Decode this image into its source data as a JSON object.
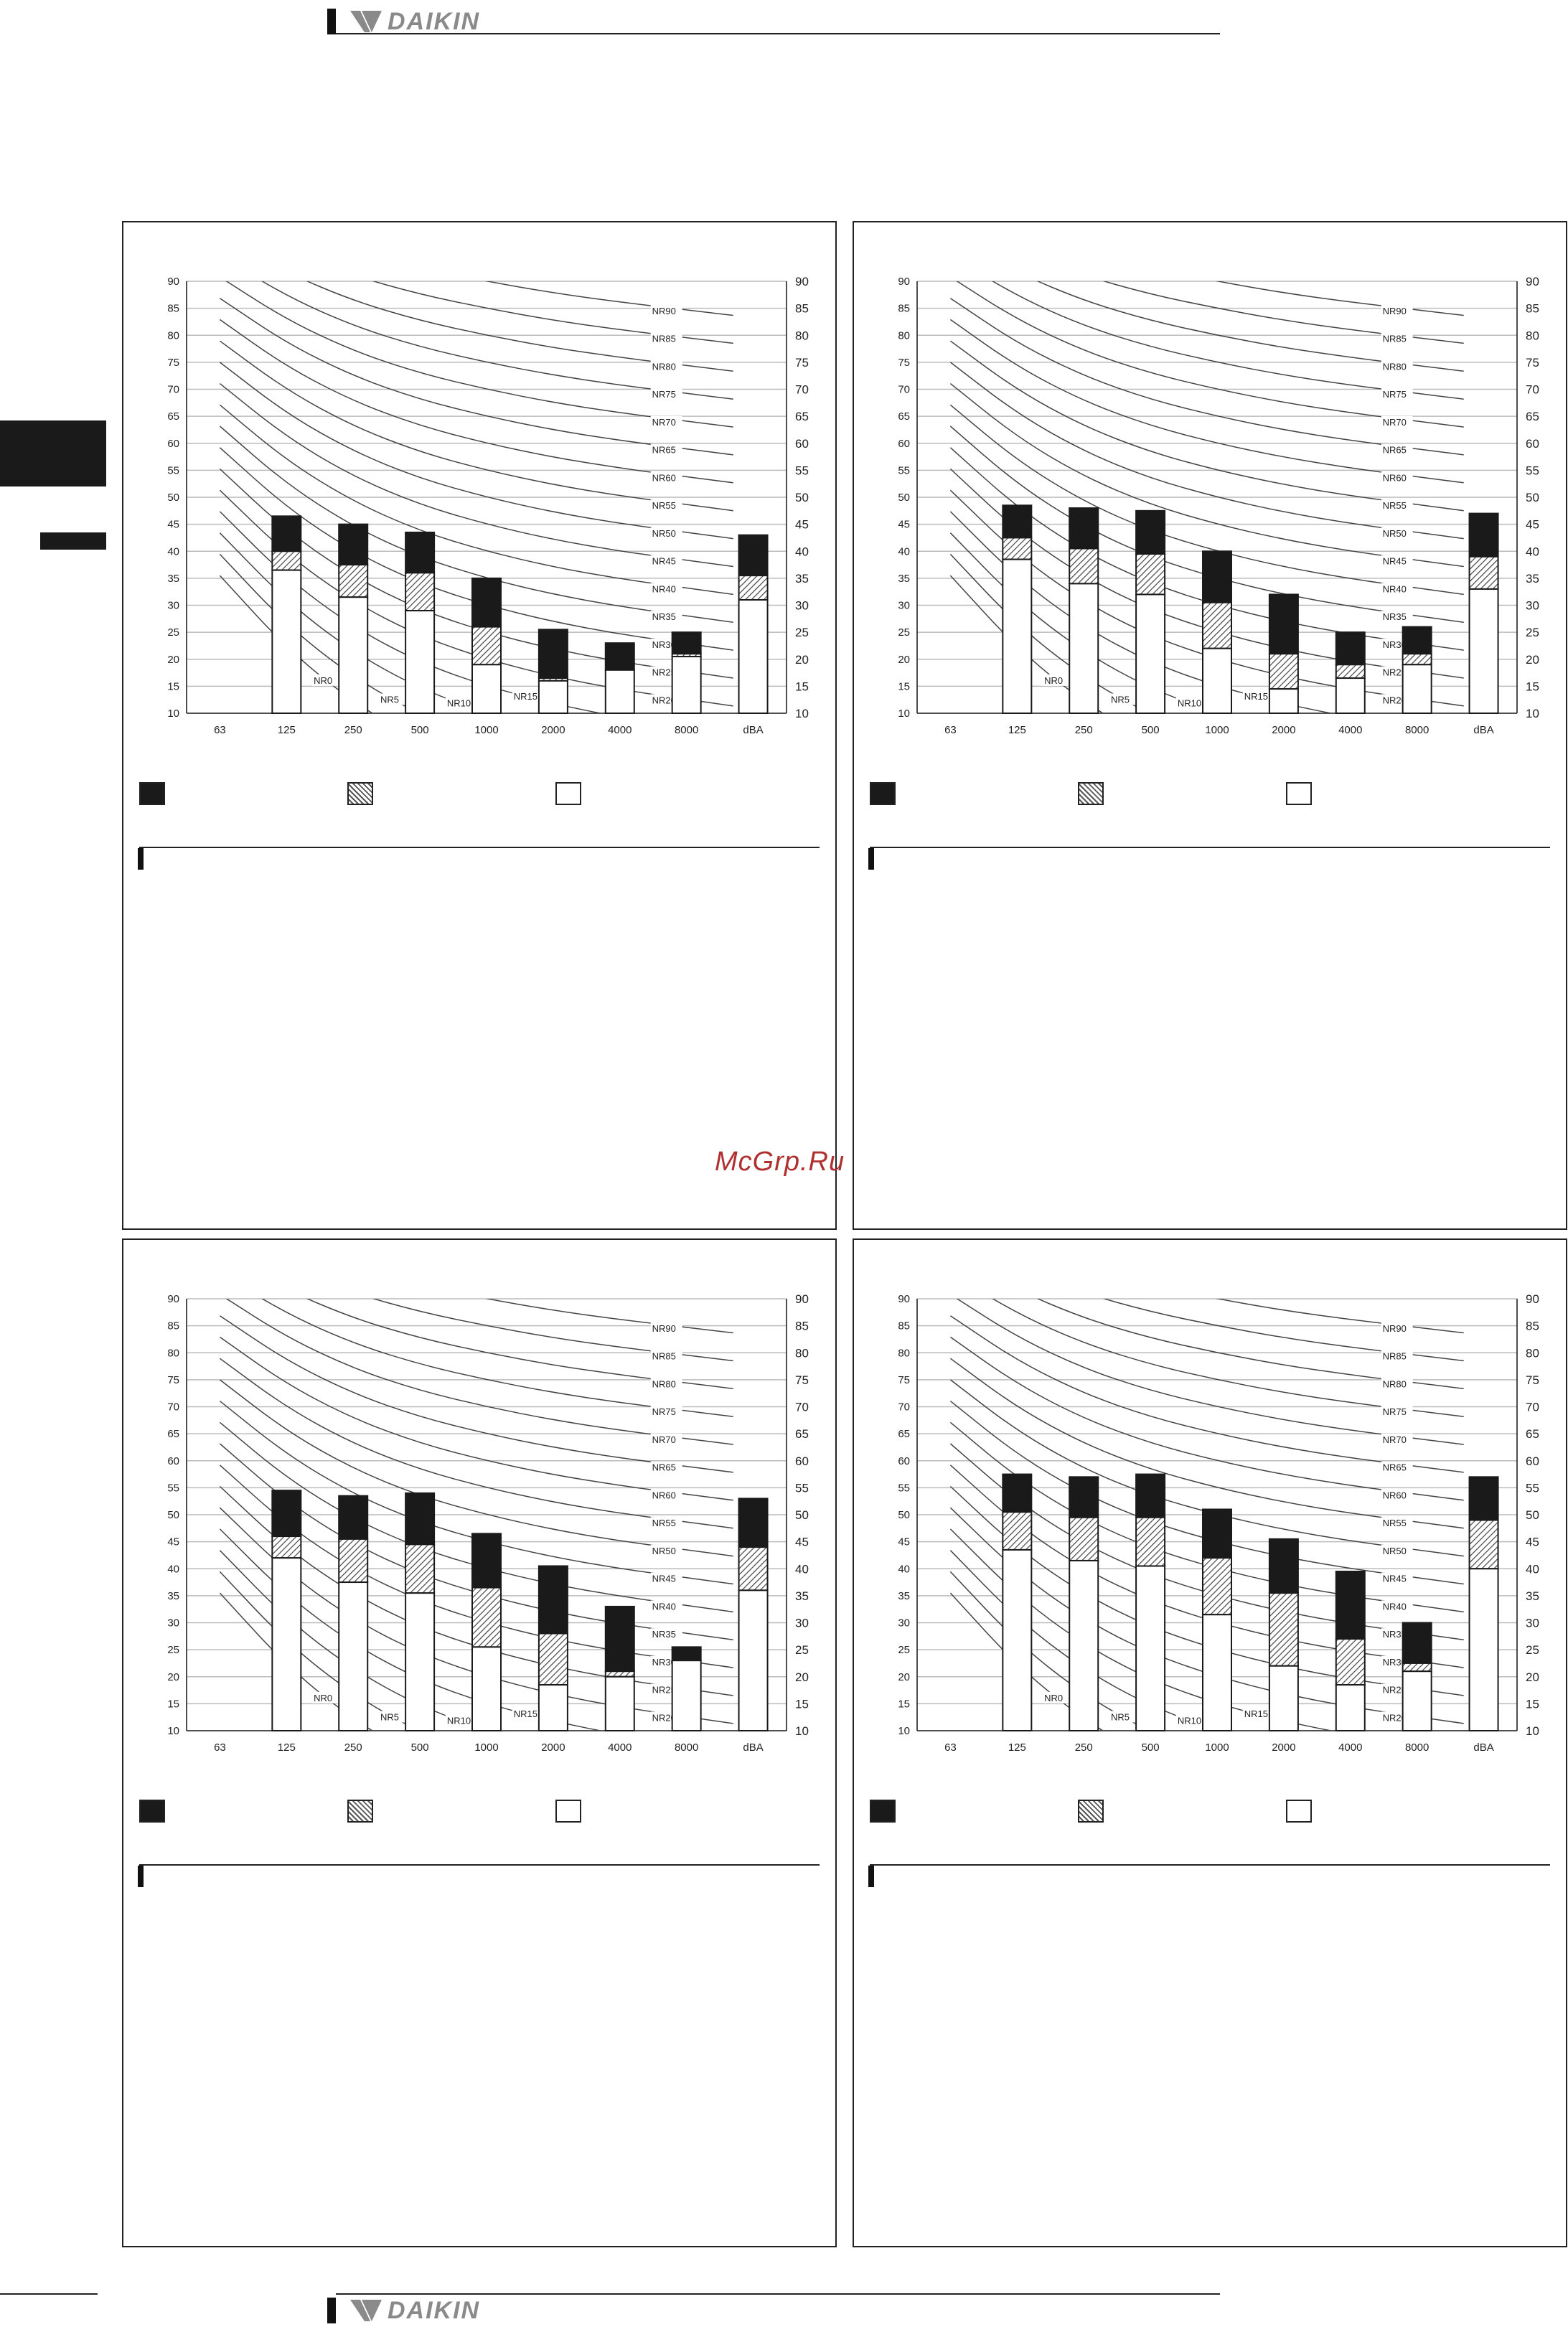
{
  "header": {
    "brand": "DAIKIN"
  },
  "footer": {
    "brand": "DAIKIN"
  },
  "watermark": "McGrp.Ru",
  "colors": {
    "octave_band": "#1a1a1a",
    "hatched": "#777777",
    "open": "#ffffff"
  },
  "legend_icons": [
    "black-square",
    "hatched-square",
    "white-square"
  ],
  "chart_data": [
    {
      "type": "bar",
      "categories": [
        "63",
        "125",
        "250",
        "500",
        "1000",
        "2000",
        "4000",
        "8000",
        "dBA"
      ],
      "ylim": [
        10,
        90
      ],
      "yticks": [
        10,
        15,
        20,
        25,
        30,
        35,
        40,
        45,
        50,
        55,
        60,
        65,
        70,
        75,
        80,
        85,
        90
      ],
      "nr_curves": [
        "NR0",
        "NR5",
        "NR10",
        "NR15",
        "NR20",
        "NR25",
        "NR30",
        "NR35",
        "NR40",
        "NR45",
        "NR50",
        "NR55",
        "NR60",
        "NR65",
        "NR70",
        "NR75",
        "NR80",
        "NR85",
        "NR90"
      ],
      "series": [
        {
          "values": [
            null,
            46.5,
            45,
            43.5,
            35,
            25.5,
            23,
            25,
            43
          ]
        },
        {
          "values": [
            null,
            40,
            37.5,
            36,
            26,
            16.5,
            null,
            21,
            35.5
          ]
        },
        {
          "values": [
            null,
            36.5,
            31.5,
            29,
            19,
            16,
            18,
            20.5,
            31
          ]
        }
      ]
    },
    {
      "type": "bar",
      "categories": [
        "63",
        "125",
        "250",
        "500",
        "1000",
        "2000",
        "4000",
        "8000",
        "dBA"
      ],
      "ylim": [
        10,
        90
      ],
      "yticks": [
        10,
        15,
        20,
        25,
        30,
        35,
        40,
        45,
        50,
        55,
        60,
        65,
        70,
        75,
        80,
        85,
        90
      ],
      "nr_curves": [
        "NR0",
        "NR5",
        "NR10",
        "NR15",
        "NR20",
        "NR25",
        "NR30",
        "NR35",
        "NR40",
        "NR45",
        "NR50",
        "NR55",
        "NR60",
        "NR65",
        "NR70",
        "NR75",
        "NR80",
        "NR85",
        "NR90"
      ],
      "series": [
        {
          "values": [
            null,
            48.5,
            48,
            47.5,
            40,
            32,
            25,
            26,
            47
          ]
        },
        {
          "values": [
            null,
            42.5,
            40.5,
            39.5,
            30.5,
            21,
            19,
            21,
            39
          ]
        },
        {
          "values": [
            null,
            38.5,
            34,
            32,
            22,
            14.5,
            16.5,
            19,
            33
          ]
        }
      ]
    },
    {
      "type": "bar",
      "categories": [
        "63",
        "125",
        "250",
        "500",
        "1000",
        "2000",
        "4000",
        "8000",
        "dBA"
      ],
      "ylim": [
        10,
        90
      ],
      "yticks": [
        10,
        15,
        20,
        25,
        30,
        35,
        40,
        45,
        50,
        55,
        60,
        65,
        70,
        75,
        80,
        85,
        90
      ],
      "nr_curves": [
        "NR0",
        "NR5",
        "NR10",
        "NR15",
        "NR20",
        "NR25",
        "NR30",
        "NR35",
        "NR40",
        "NR45",
        "NR50",
        "NR55",
        "NR60",
        "NR65",
        "NR70",
        "NR75",
        "NR80",
        "NR85",
        "NR90"
      ],
      "series": [
        {
          "values": [
            null,
            54.5,
            53.5,
            54,
            46.5,
            40.5,
            33,
            25.5,
            53
          ]
        },
        {
          "values": [
            null,
            46,
            45.5,
            44.5,
            36.5,
            28,
            21,
            null,
            44
          ]
        },
        {
          "values": [
            null,
            42,
            37.5,
            35.5,
            25.5,
            18.5,
            20,
            23,
            36
          ]
        }
      ]
    },
    {
      "type": "bar",
      "categories": [
        "63",
        "125",
        "250",
        "500",
        "1000",
        "2000",
        "4000",
        "8000",
        "dBA"
      ],
      "ylim": [
        10,
        90
      ],
      "yticks": [
        10,
        15,
        20,
        25,
        30,
        35,
        40,
        45,
        50,
        55,
        60,
        65,
        70,
        75,
        80,
        85,
        90
      ],
      "nr_curves": [
        "NR0",
        "NR5",
        "NR10",
        "NR15",
        "NR20",
        "NR25",
        "NR30",
        "NR35",
        "NR40",
        "NR45",
        "NR50",
        "NR55",
        "NR60",
        "NR65",
        "NR70",
        "NR75",
        "NR80",
        "NR85",
        "NR90"
      ],
      "series": [
        {
          "values": [
            null,
            57.5,
            57,
            57.5,
            51,
            45.5,
            39.5,
            30,
            57
          ]
        },
        {
          "values": [
            null,
            50.5,
            49.5,
            49.5,
            42,
            35.5,
            27,
            22.5,
            49
          ]
        },
        {
          "values": [
            null,
            43.5,
            41.5,
            40.5,
            31.5,
            22,
            18.5,
            21,
            40
          ]
        }
      ]
    }
  ]
}
